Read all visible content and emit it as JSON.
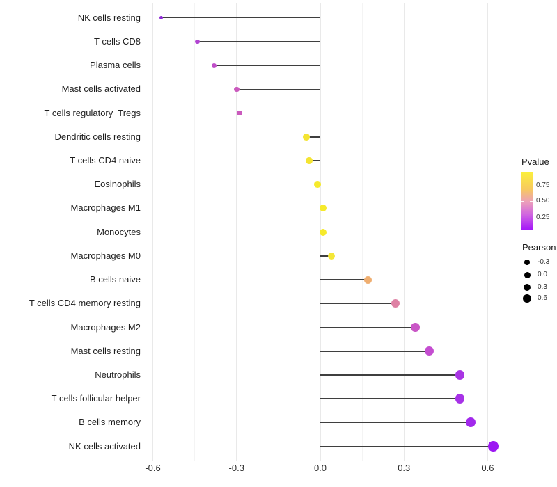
{
  "chart_data": {
    "type": "lollipop",
    "title": "",
    "xlabel": "",
    "ylabel": "",
    "xlim": [
      -0.66,
      0.72
    ],
    "x_ticks": [
      -0.6,
      -0.3,
      0.0,
      0.3,
      0.6
    ],
    "x_tick_labels": [
      "-0.6",
      "-0.3",
      "0.0",
      "0.3",
      "0.6"
    ],
    "x_minor_ticks": [
      -0.45,
      -0.15,
      0.15,
      0.45
    ],
    "grid": "vertical-major-and-minor",
    "baseline": 0,
    "stem_color": "#3f3f3f",
    "background": "#ffffff",
    "points": [
      {
        "label": "NK cells resting",
        "pearson": -0.57,
        "color": "#8F2BD6"
      },
      {
        "label": "T cells CD8",
        "pearson": -0.44,
        "color": "#B244D2"
      },
      {
        "label": "Plasma cells",
        "pearson": -0.38,
        "color": "#BF4EC8"
      },
      {
        "label": "Mast cells activated",
        "pearson": -0.3,
        "color": "#CA5ABD"
      },
      {
        "label": "T cells regulatory  Tregs",
        "pearson": -0.29,
        "color": "#CA5ABD"
      },
      {
        "label": "Dendritic cells resting",
        "pearson": -0.05,
        "color": "#F4E433"
      },
      {
        "label": "T cells CD4 naive",
        "pearson": -0.04,
        "color": "#F4E433"
      },
      {
        "label": "Eosinophils",
        "pearson": -0.01,
        "color": "#F6EA2B"
      },
      {
        "label": "Macrophages M1",
        "pearson": 0.01,
        "color": "#F6EA2B"
      },
      {
        "label": "Monocytes",
        "pearson": 0.01,
        "color": "#F6EA2B"
      },
      {
        "label": "Macrophages M0",
        "pearson": 0.04,
        "color": "#F4E738"
      },
      {
        "label": "B cells naive",
        "pearson": 0.17,
        "color": "#EFAE70"
      },
      {
        "label": "T cells CD4 memory resting",
        "pearson": 0.27,
        "color": "#DE81A4"
      },
      {
        "label": "Macrophages M2",
        "pearson": 0.34,
        "color": "#C957C6"
      },
      {
        "label": "Mast cells resting",
        "pearson": 0.39,
        "color": "#C44DD0"
      },
      {
        "label": "Neutrophils",
        "pearson": 0.5,
        "color": "#A935E4"
      },
      {
        "label": "T cells follicular helper",
        "pearson": 0.5,
        "color": "#A732E7"
      },
      {
        "label": "B cells memory",
        "pearson": 0.54,
        "color": "#A229EC"
      },
      {
        "label": "NK cells activated",
        "pearson": 0.62,
        "color": "#9C18F2"
      }
    ],
    "legends": {
      "pvalue": {
        "title": "Pvalue",
        "tick_labels": [
          "0.75",
          "0.50",
          "0.25"
        ],
        "gradient_stops": [
          {
            "color": "#FBF03C",
            "pos": 0
          },
          {
            "color": "#F7C95F",
            "pos": 30
          },
          {
            "color": "#EC9FBA",
            "pos": 52
          },
          {
            "color": "#CF63E2",
            "pos": 75
          },
          {
            "color": "#A518F8",
            "pos": 100
          }
        ]
      },
      "pearson": {
        "title": "Pearson",
        "items": [
          {
            "label": "-0.3",
            "size": 7.5
          },
          {
            "label": "0.0",
            "size": 9
          },
          {
            "label": "0.3",
            "size": 10.7
          },
          {
            "label": "0.6",
            "size": 12.3
          }
        ],
        "dot_color": "#000000"
      }
    }
  }
}
